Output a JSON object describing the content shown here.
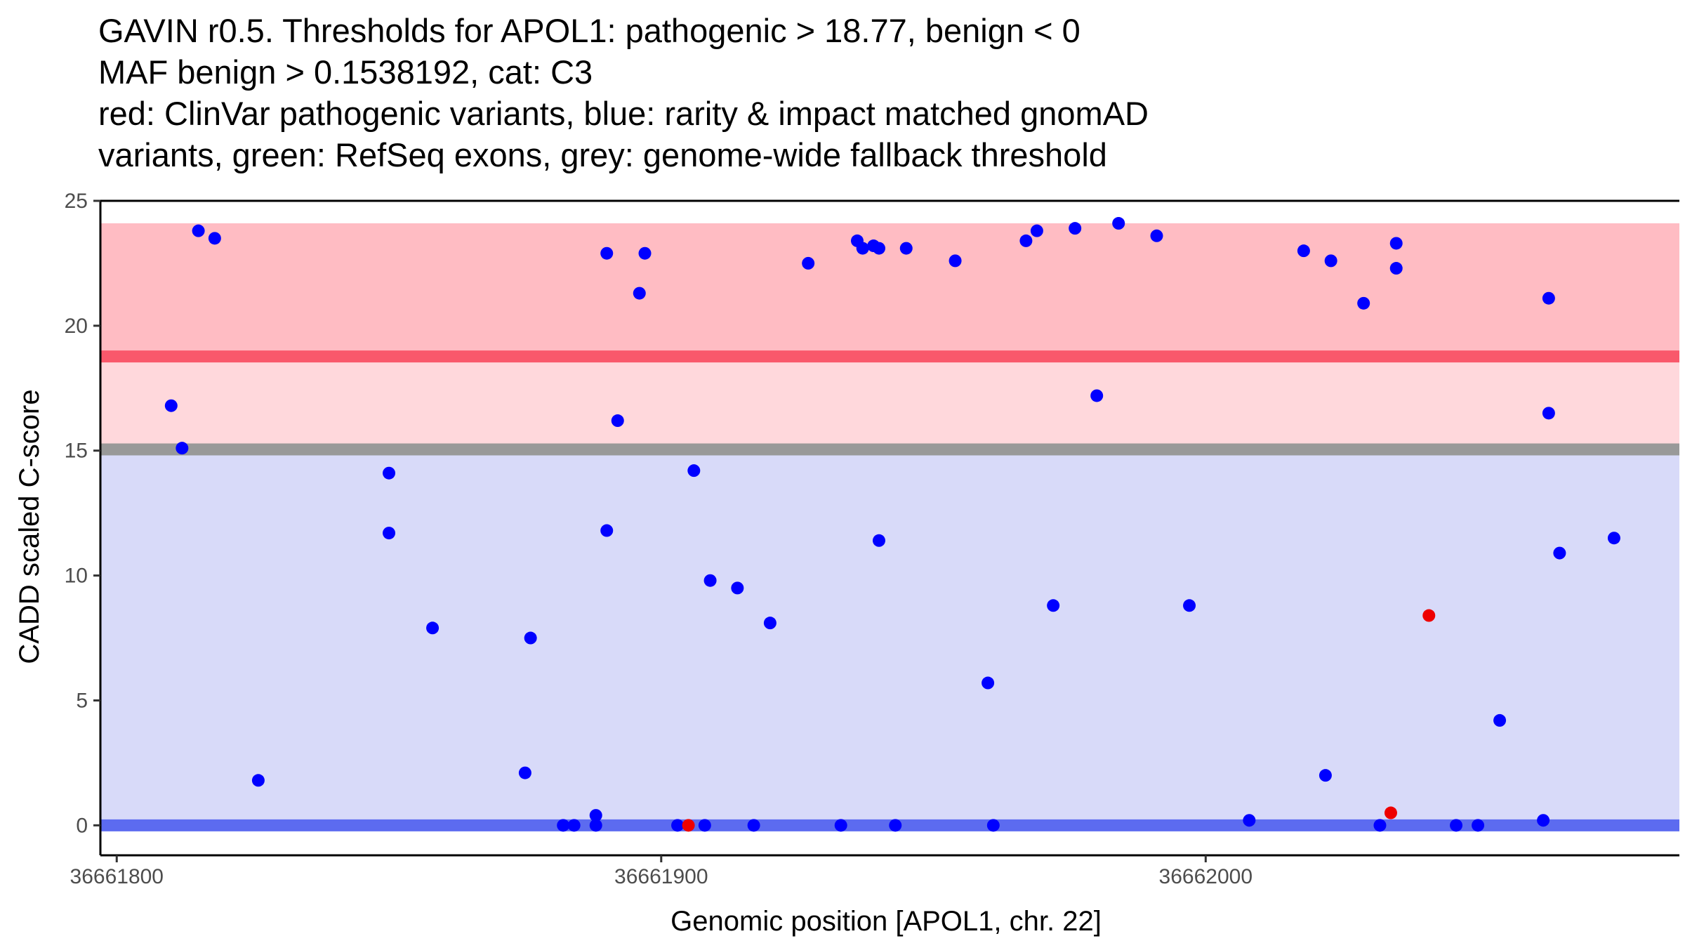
{
  "chart_data": {
    "type": "scatter",
    "title_lines": [
      "GAVIN r0.5. Thresholds for APOL1: pathogenic > 18.77, benign < 0",
      "MAF benign > 0.1538192, cat: C3",
      "red: ClinVar pathogenic variants, blue: rarity & impact matched gnomAD",
      "variants, green: RefSeq exons, grey: genome-wide fallback threshold"
    ],
    "xlabel": "Genomic position [APOL1, chr. 22]",
    "ylabel": "CADD scaled C-score",
    "xlim": [
      36661797,
      36662087
    ],
    "ylim": [
      -1.2,
      25
    ],
    "x_ticks": [
      {
        "value": 36661800,
        "label": "36661800"
      },
      {
        "value": 36661900,
        "label": "36661900"
      },
      {
        "value": 36662000,
        "label": "36662000"
      }
    ],
    "y_ticks": [
      {
        "value": 0,
        "label": "0"
      },
      {
        "value": 5,
        "label": "5"
      },
      {
        "value": 10,
        "label": "10"
      },
      {
        "value": 15,
        "label": "15"
      },
      {
        "value": 20,
        "label": "20"
      },
      {
        "value": 25,
        "label": "25"
      }
    ],
    "bands": [
      {
        "name": "pathogenic-zone",
        "y0": 18.77,
        "y1": 24.1,
        "color": "#ffbcc3"
      },
      {
        "name": "fallback-zone",
        "y0": 15.05,
        "y1": 18.77,
        "color": "#ffd8dc"
      },
      {
        "name": "benign-zone",
        "y0": 0,
        "y1": 15.05,
        "color": "#d8daf9"
      }
    ],
    "threshold_lines": [
      {
        "name": "pathogenic-threshold",
        "value": 18.77,
        "color": "#f9586b"
      },
      {
        "name": "fallback-threshold",
        "value": 15.05,
        "color": "#999999"
      },
      {
        "name": "benign-threshold",
        "value": 0,
        "color": "#5c6bf0"
      }
    ],
    "series": [
      {
        "name": "gnomAD variants",
        "color": "#0000ff",
        "points": [
          [
            36661815,
            23.8
          ],
          [
            36661818,
            23.5
          ],
          [
            36661810,
            16.8
          ],
          [
            36661812,
            15.1
          ],
          [
            36661826,
            1.8
          ],
          [
            36661850,
            14.1
          ],
          [
            36661850,
            11.7
          ],
          [
            36661858,
            7.9
          ],
          [
            36661875,
            2.1
          ],
          [
            36661876,
            7.5
          ],
          [
            36661882,
            0.0
          ],
          [
            36661884,
            0.0
          ],
          [
            36661888,
            0.4
          ],
          [
            36661888,
            0.0
          ],
          [
            36661890,
            22.9
          ],
          [
            36661890,
            11.8
          ],
          [
            36661892,
            16.2
          ],
          [
            36661896,
            21.3
          ],
          [
            36661897,
            22.9
          ],
          [
            36661903,
            0.0
          ],
          [
            36661906,
            14.2
          ],
          [
            36661908,
            0.0
          ],
          [
            36661909,
            9.8
          ],
          [
            36661914,
            9.5
          ],
          [
            36661917,
            0.0
          ],
          [
            36661920,
            8.1
          ],
          [
            36661927,
            22.5
          ],
          [
            36661933,
            0.0
          ],
          [
            36661936,
            23.4
          ],
          [
            36661937,
            23.1
          ],
          [
            36661939,
            23.2
          ],
          [
            36661940,
            23.1
          ],
          [
            36661940,
            11.4
          ],
          [
            36661943,
            0.0
          ],
          [
            36661945,
            23.1
          ],
          [
            36661954,
            22.6
          ],
          [
            36661960,
            5.7
          ],
          [
            36661961,
            0.0
          ],
          [
            36661967,
            23.4
          ],
          [
            36661969,
            23.8
          ],
          [
            36661972,
            8.8
          ],
          [
            36661976,
            23.9
          ],
          [
            36661980,
            17.2
          ],
          [
            36661984,
            24.1
          ],
          [
            36661991,
            23.6
          ],
          [
            36661997,
            8.8
          ],
          [
            36662008,
            0.2
          ],
          [
            36662018,
            23.0
          ],
          [
            36662022,
            2.0
          ],
          [
            36662023,
            22.6
          ],
          [
            36662029,
            20.9
          ],
          [
            36662032,
            0.0
          ],
          [
            36662035,
            23.3
          ],
          [
            36662035,
            22.3
          ],
          [
            36662046,
            0.0
          ],
          [
            36662050,
            0.0
          ],
          [
            36662054,
            4.2
          ],
          [
            36662062,
            0.2
          ],
          [
            36662063,
            21.1
          ],
          [
            36662063,
            16.5
          ],
          [
            36662065,
            10.9
          ],
          [
            36662075,
            11.5
          ]
        ]
      },
      {
        "name": "ClinVar pathogenic variants",
        "color": "#ee0000",
        "points": [
          [
            36661905,
            0.0
          ],
          [
            36662034,
            0.5
          ],
          [
            36662041,
            8.4
          ]
        ]
      }
    ]
  }
}
